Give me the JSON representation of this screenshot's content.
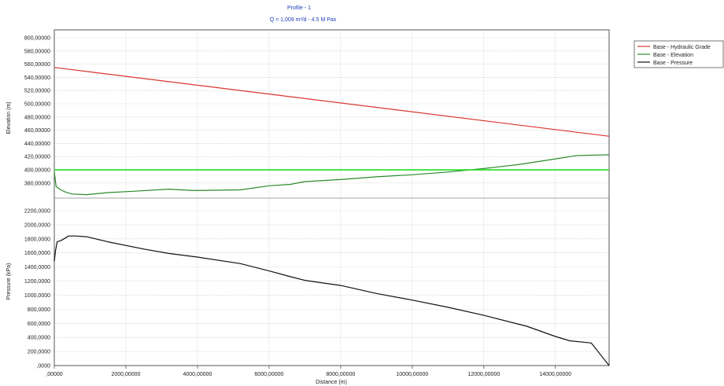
{
  "chart_data": {
    "type": "line",
    "title": "Profile - 1",
    "subtitle": "Q = 1,009 m³/d - 4.5 M Pax",
    "xlabel": "Distance (m)",
    "xlim": [
      0,
      15500
    ],
    "x_ticks": [
      {
        "v": 0,
        "label": ",00000"
      },
      {
        "v": 2000,
        "label": "2000,00000"
      },
      {
        "v": 4000,
        "label": "4000,00000"
      },
      {
        "v": 6000,
        "label": "6000,00000"
      },
      {
        "v": 8000,
        "label": "8000,00000"
      },
      {
        "v": 10000,
        "label": "10000,00000"
      },
      {
        "v": 12000,
        "label": "12000,00000"
      },
      {
        "v": 14000,
        "label": "14000,00000"
      }
    ],
    "upper_axis": {
      "ylabel": "Elevation (m)",
      "ylim": [
        370,
        610
      ],
      "tick_labels": [
        "800,00000",
        "580,00000",
        "560,00000",
        "540,00000",
        "520,00000",
        "500,00000",
        "480,00000",
        "460,00000",
        "440,00000",
        "420,00000",
        "400,00000",
        "380,00000"
      ]
    },
    "lower_axis": {
      "ylabel": "Pressure (kPa)",
      "ylim": [
        0,
        2300
      ],
      "tick_labels": [
        "2200,0000",
        "2000,0000",
        "1800,0000",
        "1600,0000",
        "1400,0000",
        "1200,0000",
        "1000,0000",
        "800,0000",
        "600,0000",
        "400,0000",
        "200,0000",
        ",0000"
      ]
    },
    "grid": true,
    "legend_position": "top-right",
    "series": [
      {
        "name": "Base - Hydraulic Grade",
        "color": "#d9352e",
        "axis": "upper",
        "x": [
          0,
          15500
        ],
        "y": [
          560,
          460
        ]
      },
      {
        "name": "Base - Elevation",
        "color": "#2a8a2a",
        "axis": "upper",
        "x": [
          0,
          50,
          150,
          300,
          500,
          900,
          1500,
          2200,
          3200,
          3900,
          5200,
          6000,
          6600,
          7000,
          8000,
          9000,
          10000,
          11000,
          12000,
          13000,
          14000,
          14600,
          15500
        ],
        "y": [
          408,
          387,
          383,
          379,
          376,
          375,
          378,
          380,
          383,
          381,
          382,
          388,
          390,
          394,
          397,
          401,
          404,
          408,
          413,
          419,
          427,
          432,
          433
        ]
      },
      {
        "name": "",
        "color": "#22dd22",
        "axis": "upper",
        "x": [
          0,
          15500
        ],
        "y": [
          411,
          411
        ]
      },
      {
        "name": "Base - Pressure",
        "color": "#111111",
        "axis": "lower",
        "x": [
          0,
          30,
          80,
          200,
          400,
          600,
          900,
          1500,
          2500,
          3200,
          4000,
          5200,
          6000,
          6600,
          7000,
          8000,
          9000,
          10000,
          11000,
          12000,
          13200,
          14000,
          14400,
          15000,
          15500
        ],
        "y": [
          1430,
          1570,
          1700,
          1720,
          1780,
          1780,
          1770,
          1700,
          1600,
          1540,
          1490,
          1400,
          1300,
          1220,
          1170,
          1100,
          990,
          900,
          800,
          690,
          540,
          400,
          340,
          310,
          0
        ]
      }
    ]
  }
}
